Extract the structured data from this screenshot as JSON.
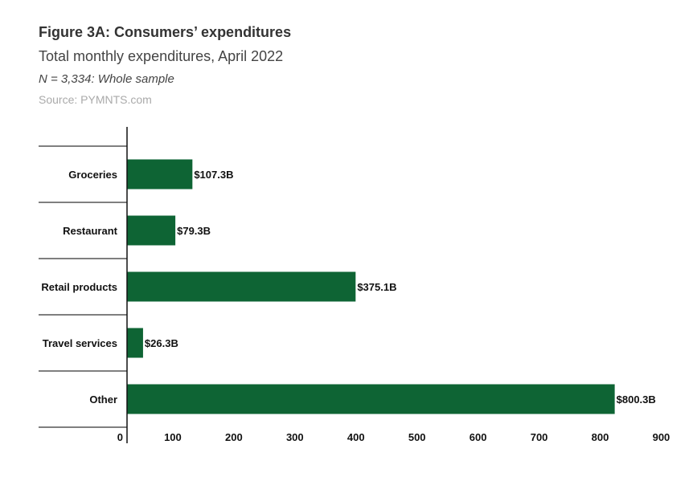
{
  "chart_data": {
    "type": "bar",
    "orientation": "horizontal",
    "title": "Figure 3A: Consumers’ expenditures",
    "subtitle": "Total monthly expenditures, April 2022",
    "note": "N = 3,334: Whole sample",
    "source": "Source: PYMNTS.com",
    "categories": [
      "Groceries",
      "Restaurant",
      "Retail products",
      "Travel services",
      "Other"
    ],
    "values": [
      107.3,
      79.3,
      375.1,
      26.3,
      800.3
    ],
    "data_labels": [
      "$107.3B",
      "$79.3B",
      "$375.1B",
      "$26.3B",
      "$800.3B"
    ],
    "x_ticks": [
      0,
      100,
      200,
      300,
      400,
      500,
      600,
      700,
      800,
      900
    ],
    "xlim": [
      0,
      900
    ],
    "xlabel": "",
    "ylabel": "",
    "grid": false,
    "bar_color": "#0e6434"
  }
}
